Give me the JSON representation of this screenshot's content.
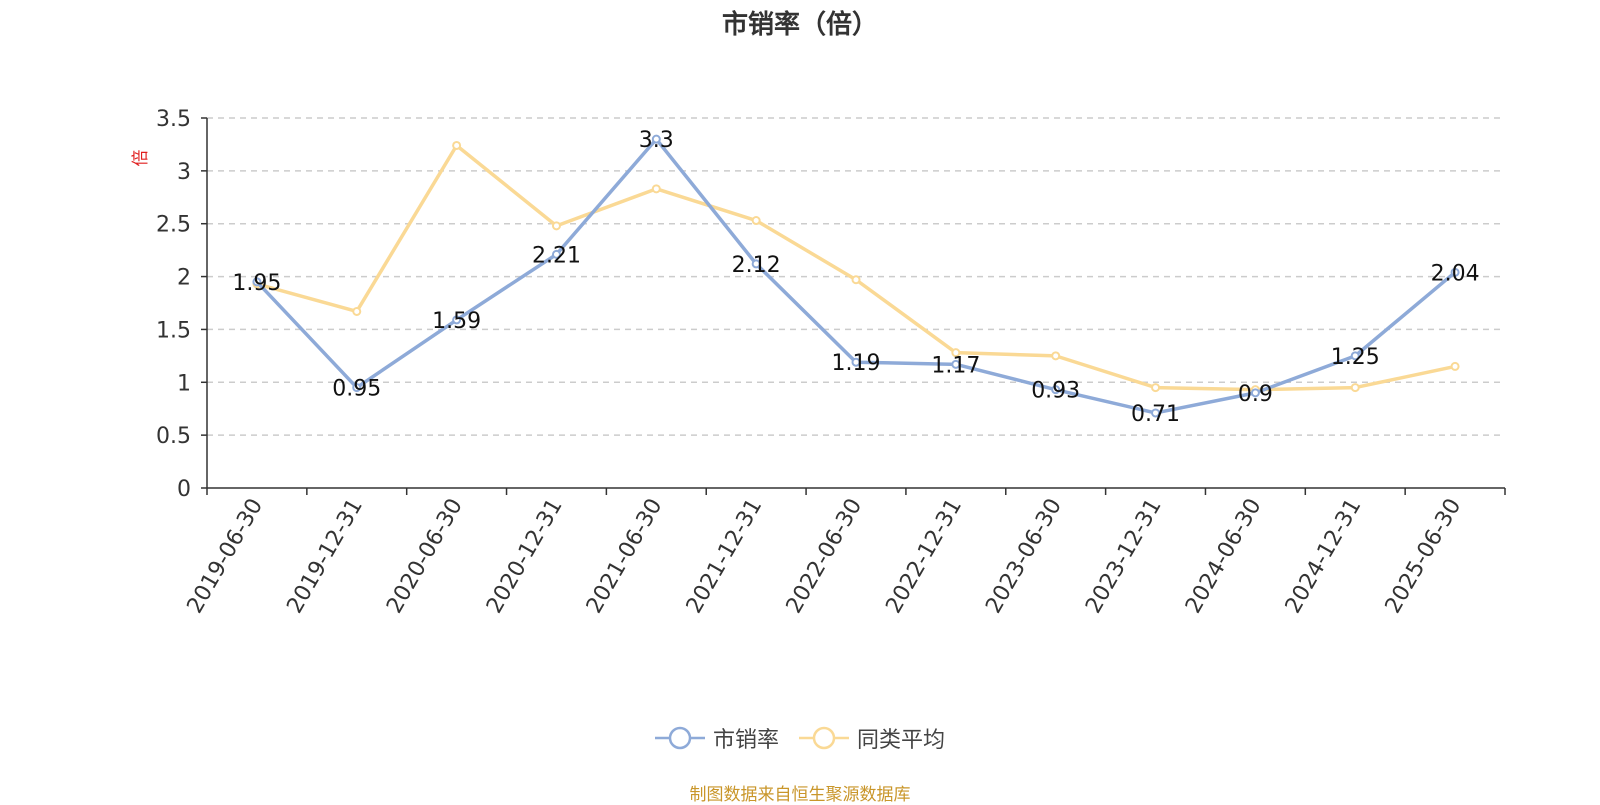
{
  "chart_data": {
    "type": "line",
    "title": "市销率（倍）",
    "ylabel": "倍",
    "xlabel": "",
    "categories": [
      "2019-06-30",
      "2019-12-31",
      "2020-06-30",
      "2020-12-31",
      "2021-06-30",
      "2021-12-31",
      "2022-06-30",
      "2022-12-31",
      "2023-06-30",
      "2023-12-31",
      "2024-06-30",
      "2024-12-31",
      "2025-06-30"
    ],
    "ylim": [
      0,
      3.5
    ],
    "yticks": [
      0,
      0.5,
      1,
      1.5,
      2,
      2.5,
      3,
      3.5
    ],
    "ytick_labels": [
      "0",
      "0.5",
      "1",
      "1.5",
      "2",
      "2.5",
      "3",
      "3.5"
    ],
    "grid": true,
    "legend_position": "bottom",
    "series": [
      {
        "name": "市销率",
        "color": "#8eaad8",
        "values": [
          1.95,
          0.95,
          1.59,
          2.21,
          3.3,
          2.12,
          1.19,
          1.17,
          0.93,
          0.71,
          0.9,
          1.25,
          2.04
        ],
        "labels": [
          "1.95",
          "0.95",
          "1.59",
          "2.21",
          "3.3",
          "2.12",
          "1.19",
          "1.17",
          "0.93",
          "0.71",
          "0.9",
          "1.25",
          "2.04"
        ],
        "show_labels": true
      },
      {
        "name": "同类平均",
        "color": "#fad995",
        "values": [
          1.93,
          1.67,
          3.24,
          2.48,
          2.83,
          2.53,
          1.97,
          1.28,
          1.25,
          0.95,
          0.93,
          0.95,
          1.15
        ],
        "show_labels": false
      }
    ],
    "source": "制图数据来自恒生聚源数据库"
  }
}
